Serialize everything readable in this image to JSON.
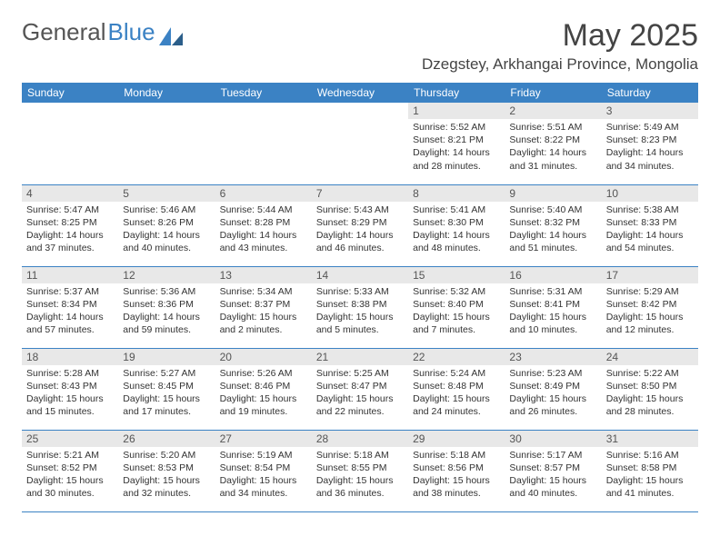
{
  "logo": {
    "part1": "General",
    "part2": "Blue"
  },
  "title": "May 2025",
  "location": "Dzegstey, Arkhangai Province, Mongolia",
  "weekdays": [
    "Sunday",
    "Monday",
    "Tuesday",
    "Wednesday",
    "Thursday",
    "Friday",
    "Saturday"
  ],
  "colors": {
    "header_bg": "#3b82c4",
    "header_text": "#ffffff",
    "daynum_bg": "#e8e8e8",
    "cell_border": "#3b82c4",
    "body_text": "#333333"
  },
  "typography": {
    "title_fontsize": 34,
    "location_fontsize": 17,
    "weekday_fontsize": 12,
    "daynum_fontsize": 12,
    "cell_fontsize": 10.5
  },
  "grid": {
    "cols": 7,
    "rows": 5,
    "first_weekday_index": 4
  },
  "days": [
    {
      "n": 1,
      "sunrise": "5:52 AM",
      "sunset": "8:21 PM",
      "daylight": "14 hours and 28 minutes."
    },
    {
      "n": 2,
      "sunrise": "5:51 AM",
      "sunset": "8:22 PM",
      "daylight": "14 hours and 31 minutes."
    },
    {
      "n": 3,
      "sunrise": "5:49 AM",
      "sunset": "8:23 PM",
      "daylight": "14 hours and 34 minutes."
    },
    {
      "n": 4,
      "sunrise": "5:47 AM",
      "sunset": "8:25 PM",
      "daylight": "14 hours and 37 minutes."
    },
    {
      "n": 5,
      "sunrise": "5:46 AM",
      "sunset": "8:26 PM",
      "daylight": "14 hours and 40 minutes."
    },
    {
      "n": 6,
      "sunrise": "5:44 AM",
      "sunset": "8:28 PM",
      "daylight": "14 hours and 43 minutes."
    },
    {
      "n": 7,
      "sunrise": "5:43 AM",
      "sunset": "8:29 PM",
      "daylight": "14 hours and 46 minutes."
    },
    {
      "n": 8,
      "sunrise": "5:41 AM",
      "sunset": "8:30 PM",
      "daylight": "14 hours and 48 minutes."
    },
    {
      "n": 9,
      "sunrise": "5:40 AM",
      "sunset": "8:32 PM",
      "daylight": "14 hours and 51 minutes."
    },
    {
      "n": 10,
      "sunrise": "5:38 AM",
      "sunset": "8:33 PM",
      "daylight": "14 hours and 54 minutes."
    },
    {
      "n": 11,
      "sunrise": "5:37 AM",
      "sunset": "8:34 PM",
      "daylight": "14 hours and 57 minutes."
    },
    {
      "n": 12,
      "sunrise": "5:36 AM",
      "sunset": "8:36 PM",
      "daylight": "14 hours and 59 minutes."
    },
    {
      "n": 13,
      "sunrise": "5:34 AM",
      "sunset": "8:37 PM",
      "daylight": "15 hours and 2 minutes."
    },
    {
      "n": 14,
      "sunrise": "5:33 AM",
      "sunset": "8:38 PM",
      "daylight": "15 hours and 5 minutes."
    },
    {
      "n": 15,
      "sunrise": "5:32 AM",
      "sunset": "8:40 PM",
      "daylight": "15 hours and 7 minutes."
    },
    {
      "n": 16,
      "sunrise": "5:31 AM",
      "sunset": "8:41 PM",
      "daylight": "15 hours and 10 minutes."
    },
    {
      "n": 17,
      "sunrise": "5:29 AM",
      "sunset": "8:42 PM",
      "daylight": "15 hours and 12 minutes."
    },
    {
      "n": 18,
      "sunrise": "5:28 AM",
      "sunset": "8:43 PM",
      "daylight": "15 hours and 15 minutes."
    },
    {
      "n": 19,
      "sunrise": "5:27 AM",
      "sunset": "8:45 PM",
      "daylight": "15 hours and 17 minutes."
    },
    {
      "n": 20,
      "sunrise": "5:26 AM",
      "sunset": "8:46 PM",
      "daylight": "15 hours and 19 minutes."
    },
    {
      "n": 21,
      "sunrise": "5:25 AM",
      "sunset": "8:47 PM",
      "daylight": "15 hours and 22 minutes."
    },
    {
      "n": 22,
      "sunrise": "5:24 AM",
      "sunset": "8:48 PM",
      "daylight": "15 hours and 24 minutes."
    },
    {
      "n": 23,
      "sunrise": "5:23 AM",
      "sunset": "8:49 PM",
      "daylight": "15 hours and 26 minutes."
    },
    {
      "n": 24,
      "sunrise": "5:22 AM",
      "sunset": "8:50 PM",
      "daylight": "15 hours and 28 minutes."
    },
    {
      "n": 25,
      "sunrise": "5:21 AM",
      "sunset": "8:52 PM",
      "daylight": "15 hours and 30 minutes."
    },
    {
      "n": 26,
      "sunrise": "5:20 AM",
      "sunset": "8:53 PM",
      "daylight": "15 hours and 32 minutes."
    },
    {
      "n": 27,
      "sunrise": "5:19 AM",
      "sunset": "8:54 PM",
      "daylight": "15 hours and 34 minutes."
    },
    {
      "n": 28,
      "sunrise": "5:18 AM",
      "sunset": "8:55 PM",
      "daylight": "15 hours and 36 minutes."
    },
    {
      "n": 29,
      "sunrise": "5:18 AM",
      "sunset": "8:56 PM",
      "daylight": "15 hours and 38 minutes."
    },
    {
      "n": 30,
      "sunrise": "5:17 AM",
      "sunset": "8:57 PM",
      "daylight": "15 hours and 40 minutes."
    },
    {
      "n": 31,
      "sunrise": "5:16 AM",
      "sunset": "8:58 PM",
      "daylight": "15 hours and 41 minutes."
    }
  ],
  "labels": {
    "sunrise": "Sunrise:",
    "sunset": "Sunset:",
    "daylight": "Daylight:"
  }
}
